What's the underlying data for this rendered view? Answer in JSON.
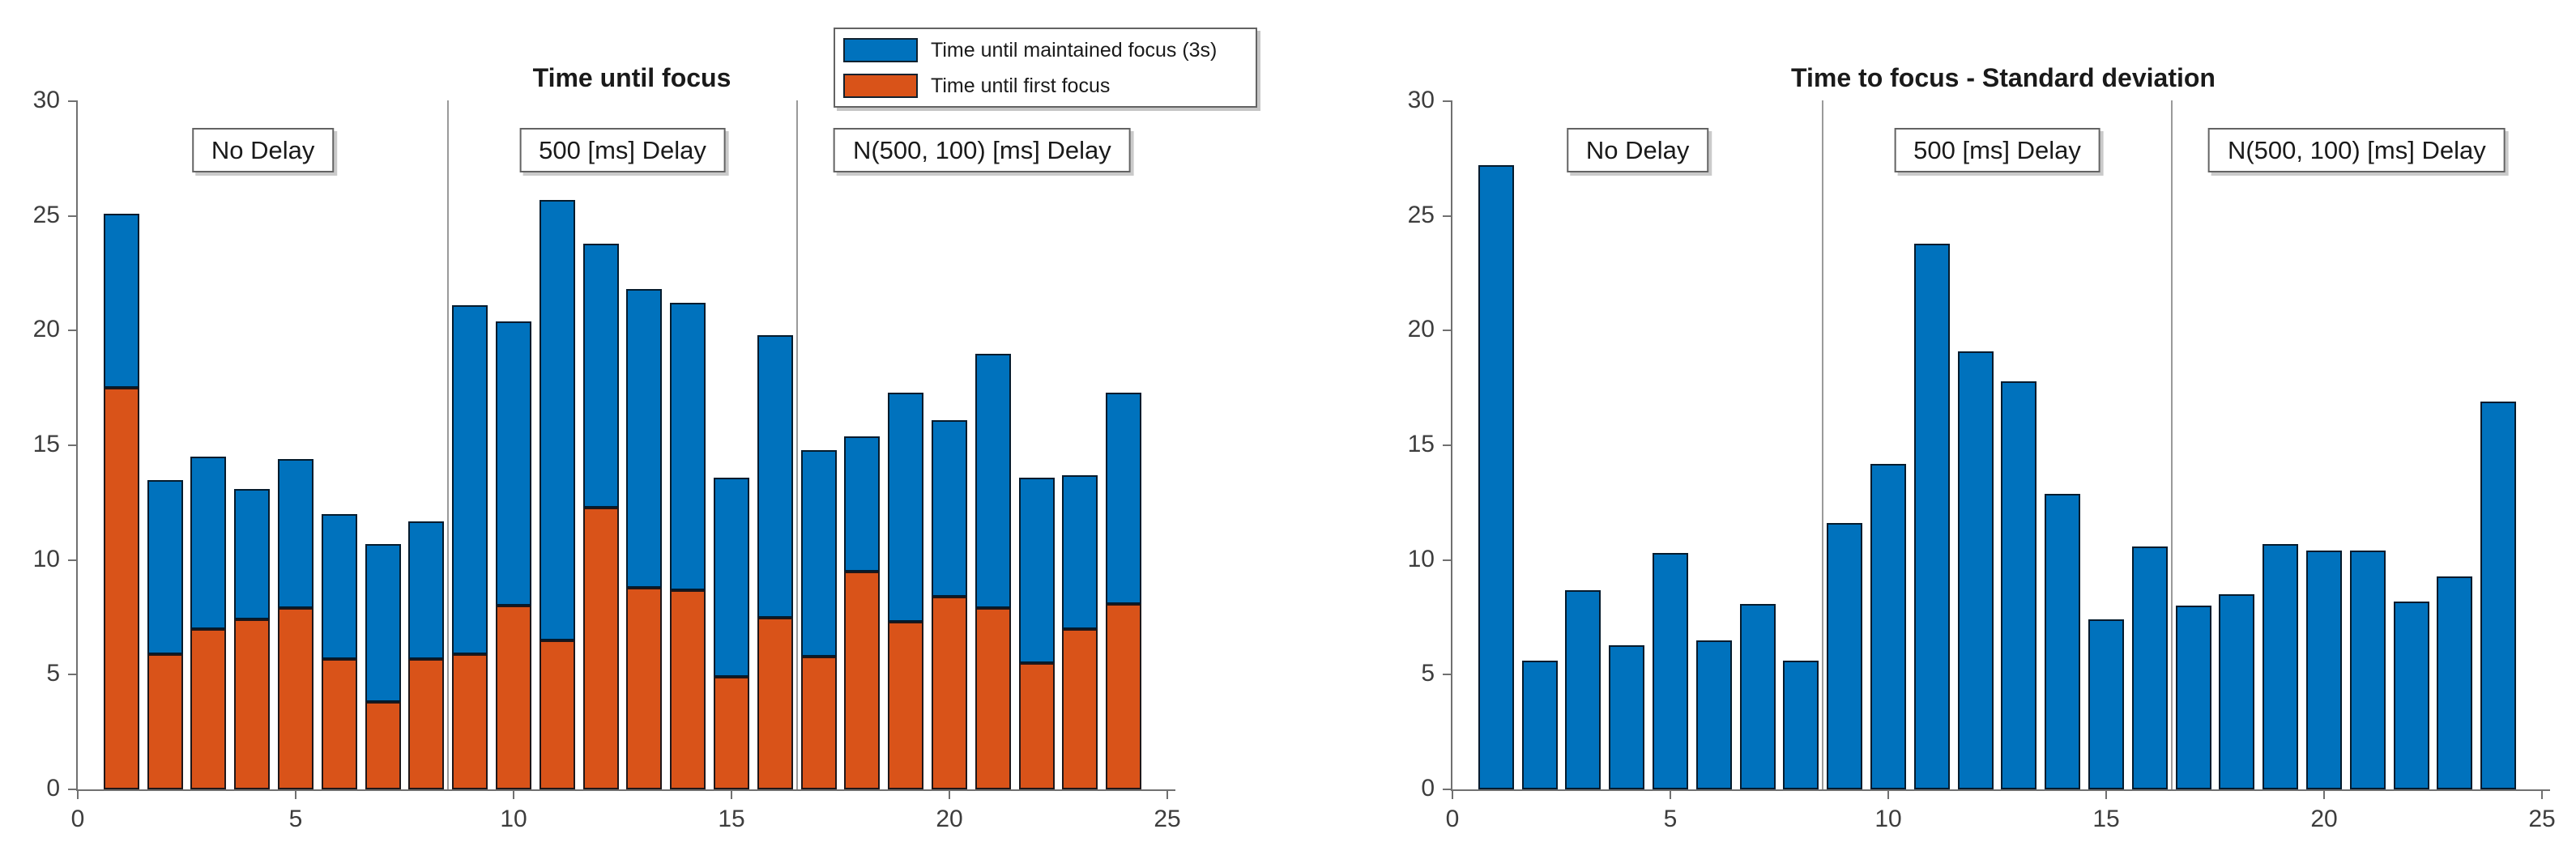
{
  "figure": {
    "background": "#ffffff"
  },
  "chart_data": [
    {
      "type": "bar",
      "stacked": true,
      "title": "Time until focus",
      "xlabel": "",
      "ylabel": "",
      "xlim": [
        0,
        25
      ],
      "ylim": [
        0,
        30
      ],
      "xticks": [
        0,
        5,
        10,
        15,
        20,
        25
      ],
      "yticks": [
        0,
        5,
        10,
        15,
        20,
        25,
        30
      ],
      "grid": false,
      "legend_position": "top-right",
      "legend": [
        {
          "label": "Time until maintained focus (3s)",
          "color": "#0072BD"
        },
        {
          "label": "Time until first focus",
          "color": "#D95319"
        }
      ],
      "x": [
        1,
        2,
        3,
        4,
        5,
        6,
        7,
        8,
        9,
        10,
        11,
        12,
        13,
        14,
        15,
        16,
        17,
        18,
        19,
        20,
        21,
        22,
        23,
        24
      ],
      "series": [
        {
          "name": "Time until maintained focus (3s)",
          "color": "#0072BD",
          "role": "stack-total-top",
          "totals": [
            25.1,
            13.5,
            14.5,
            13.1,
            14.4,
            12.0,
            10.7,
            11.7,
            21.1,
            20.4,
            25.7,
            23.8,
            21.8,
            21.2,
            13.6,
            19.8,
            14.8,
            15.4,
            17.3,
            16.1,
            19.0,
            13.6,
            13.7,
            17.3
          ]
        },
        {
          "name": "Time until first focus",
          "color": "#D95319",
          "role": "stack-bottom",
          "values": [
            17.5,
            5.9,
            7.0,
            7.4,
            7.9,
            5.7,
            3.8,
            5.7,
            5.9,
            8.0,
            6.5,
            12.3,
            8.8,
            8.7,
            4.9,
            7.5,
            5.8,
            9.5,
            7.3,
            8.4,
            7.9,
            5.5,
            7.0,
            8.1
          ]
        }
      ],
      "separators_x": [
        8.5,
        16.5
      ],
      "regions": [
        {
          "label": "No Delay",
          "x_center": 4.25
        },
        {
          "label": "500 [ms] Delay",
          "x_center": 12.5
        },
        {
          "label": "N(500, 100) [ms] Delay",
          "x_center": 20.75
        }
      ]
    },
    {
      "type": "bar",
      "stacked": false,
      "title": "Time to focus - Standard deviation",
      "xlabel": "",
      "ylabel": "",
      "xlim": [
        0,
        25
      ],
      "ylim": [
        0,
        30
      ],
      "xticks": [
        0,
        5,
        10,
        15,
        20,
        25
      ],
      "yticks": [
        0,
        5,
        10,
        15,
        20,
        25,
        30
      ],
      "grid": false,
      "x": [
        1,
        2,
        3,
        4,
        5,
        6,
        7,
        8,
        9,
        10,
        11,
        12,
        13,
        14,
        15,
        16,
        17,
        18,
        19,
        20,
        21,
        22,
        23,
        24
      ],
      "series": [
        {
          "name": "Standard deviation",
          "color": "#0072BD",
          "values": [
            27.2,
            5.6,
            8.7,
            6.3,
            10.3,
            6.5,
            8.1,
            5.6,
            11.6,
            14.2,
            23.8,
            19.1,
            17.8,
            12.9,
            7.4,
            10.6,
            8.0,
            8.5,
            10.7,
            10.4,
            10.4,
            8.2,
            9.3,
            16.9
          ]
        }
      ],
      "separators_x": [
        8.5,
        16.5
      ],
      "regions": [
        {
          "label": "No Delay",
          "x_center": 4.25
        },
        {
          "label": "500 [ms] Delay",
          "x_center": 12.5
        },
        {
          "label": "N(500, 100) [ms] Delay",
          "x_center": 20.75
        }
      ]
    }
  ]
}
